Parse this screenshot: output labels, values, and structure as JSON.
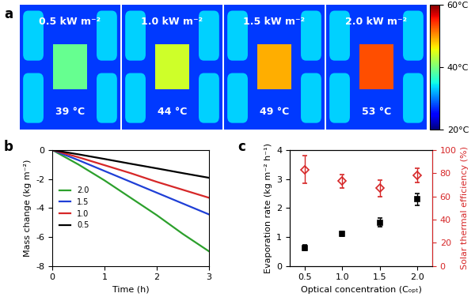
{
  "chart_data": [
    {
      "type": "image",
      "panel": "a",
      "panels": [
        {
          "label": "0.5 kW m⁻²",
          "temperature": 39,
          "temperature_label": "39 °C"
        },
        {
          "label": "1.0 kW m⁻²",
          "temperature": 44,
          "temperature_label": "44 °C"
        },
        {
          "label": "1.5 kW m⁻²",
          "temperature": 49,
          "temperature_label": "49 °C"
        },
        {
          "label": "2.0 kW m⁻²",
          "temperature": 53,
          "temperature_label": "53 °C"
        }
      ],
      "colorbar_range": [
        20,
        60
      ],
      "colorbar_ticks": [
        {
          "value": 20,
          "label": "20°C"
        },
        {
          "value": 40,
          "label": "40°C"
        },
        {
          "value": 60,
          "label": "60°C"
        }
      ]
    },
    {
      "type": "line",
      "panel": "b",
      "xlabel": "Time (h)",
      "ylabel": "Mass change (kg m⁻²)",
      "x": [
        0,
        0.5,
        1.0,
        1.5,
        2.0,
        2.5,
        3.0
      ],
      "xlim": [
        0,
        3
      ],
      "xticks": [
        0,
        1,
        2,
        3
      ],
      "ylim": [
        -8,
        0
      ],
      "yticks": [
        -8,
        -6,
        -4,
        -2,
        0
      ],
      "legend": "center left",
      "series": [
        {
          "name": "2.0",
          "color": "#2ca02c",
          "values": [
            0,
            -1.0,
            -2.1,
            -3.3,
            -4.5,
            -5.8,
            -7.0
          ]
        },
        {
          "name": "1.5",
          "color": "#1f3fd6",
          "values": [
            0,
            -0.7,
            -1.45,
            -2.2,
            -2.95,
            -3.7,
            -4.45
          ]
        },
        {
          "name": "1.0",
          "color": "#d62728",
          "values": [
            0,
            -0.5,
            -1.05,
            -1.6,
            -2.2,
            -2.75,
            -3.3
          ]
        },
        {
          "name": "0.5",
          "color": "#000000",
          "values": [
            0,
            -0.3,
            -0.62,
            -0.95,
            -1.27,
            -1.6,
            -1.92
          ]
        }
      ]
    },
    {
      "type": "scatter",
      "panel": "c",
      "xlabel": "Optical concentration (Cₒₚₜ)",
      "ylabel": "Evaporation rate (kg m⁻² h⁻¹)",
      "y2label": "Solar thermal efficiency (%)",
      "x": [
        0.5,
        1.0,
        1.5,
        2.0
      ],
      "xlim": [
        0.3,
        2.2
      ],
      "xticks": [
        0.5,
        1.0,
        1.5,
        2.0
      ],
      "ylim": [
        0,
        4
      ],
      "yticks": [
        0,
        1,
        2,
        3,
        4
      ],
      "y2lim": [
        0,
        100
      ],
      "y2ticks": [
        0,
        20,
        40,
        60,
        80,
        100
      ],
      "series": [
        {
          "color": "#000000",
          "marker": "square",
          "values": [
            0.62,
            1.1,
            1.5,
            2.3
          ],
          "errors": [
            0.1,
            0.08,
            0.15,
            0.2
          ]
        },
        {
          "color": "#d62728",
          "marker": "diamond",
          "axis": "y2",
          "values": [
            83,
            73,
            67,
            78
          ],
          "errors": [
            12,
            6,
            7,
            6
          ]
        }
      ]
    }
  ]
}
